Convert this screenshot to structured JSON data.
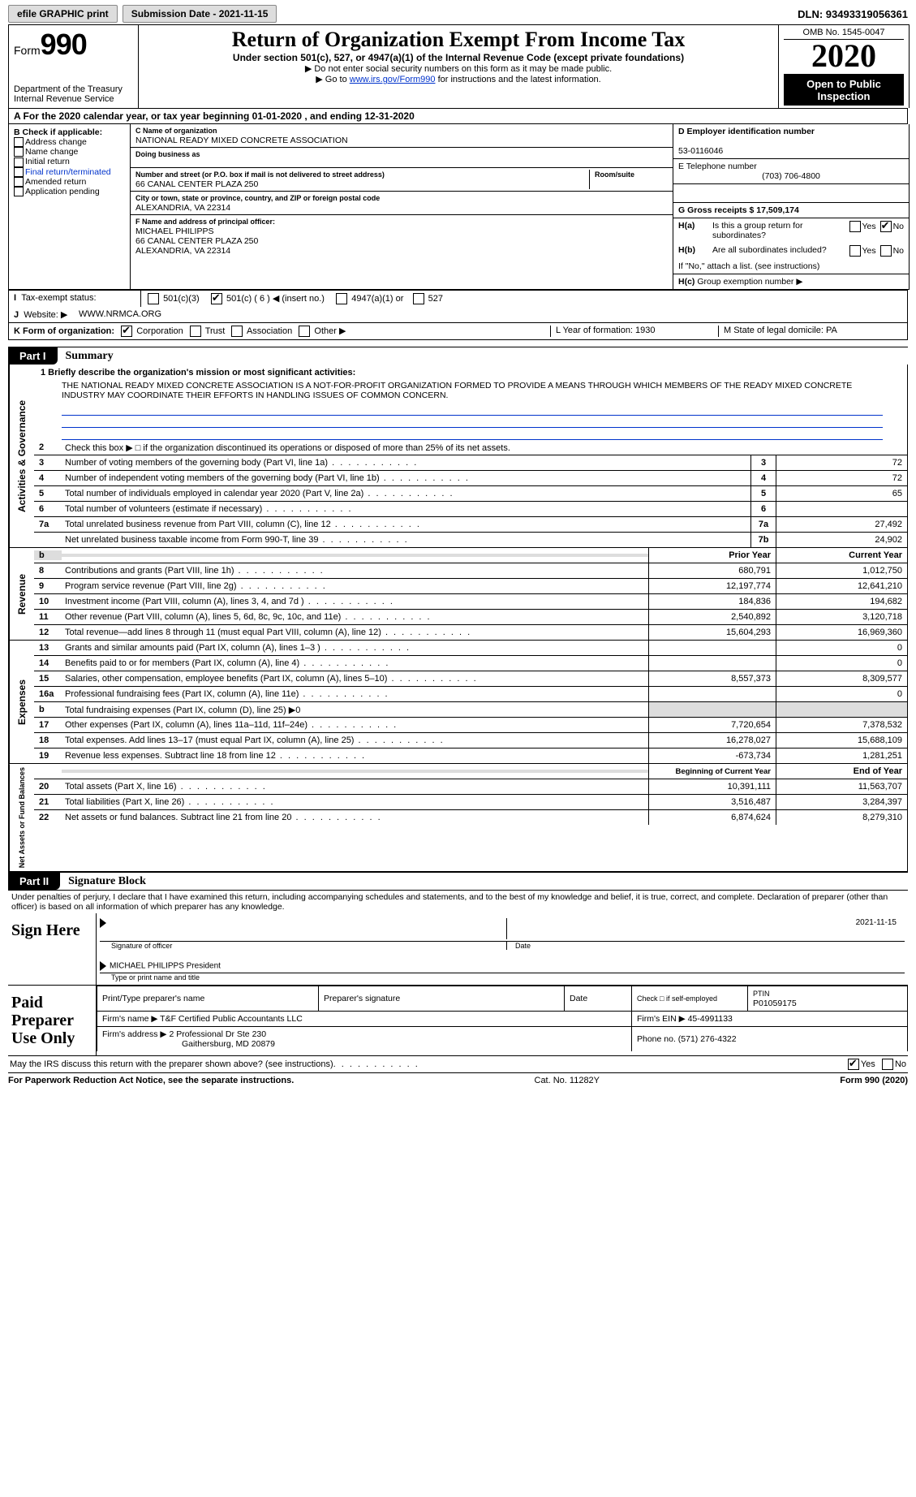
{
  "colors": {
    "bg": "#ffffff",
    "black": "#000000",
    "link": "#0033cc",
    "shade": "#dddddd"
  },
  "topbar": {
    "efile_label": "efile GRAPHIC print",
    "submission_label": "Submission Date - 2021-11-15",
    "dln_label": "DLN: 93493319056361"
  },
  "header": {
    "form_prefix": "Form",
    "form_number": "990",
    "dept": "Department of the Treasury\nInternal Revenue Service",
    "title": "Return of Organization Exempt From Income Tax",
    "subtitle": "Under section 501(c), 527, or 4947(a)(1) of the Internal Revenue Code (except private foundations)",
    "note1": "▶ Do not enter social security numbers on this form as it may be made public.",
    "note2_prefix": "▶ Go to ",
    "note2_link": "www.irs.gov/Form990",
    "note2_suffix": " for instructions and the latest information.",
    "omb": "OMB No. 1545-0047",
    "year": "2020",
    "open_public": "Open to Public Inspection"
  },
  "rowA": "A  For the 2020 calendar year, or tax year beginning 01-01-2020    , and ending 12-31-2020",
  "colB": {
    "header": "B Check if applicable:",
    "items": [
      "Address change",
      "Name change",
      "Initial return",
      "Final return/terminated",
      "Amended return",
      "Application pending"
    ]
  },
  "colC": {
    "name_label": "C Name of organization",
    "org_name": "NATIONAL READY MIXED CONCRETE ASSOCIATION",
    "dba_label": "Doing business as",
    "street_label": "Number and street (or P.O. box if mail is not delivered to street address)",
    "street": "66 CANAL CENTER PLAZA 250",
    "room_label": "Room/suite",
    "city_label": "City or town, state or province, country, and ZIP or foreign postal code",
    "city": "ALEXANDRIA, VA  22314",
    "officer_label": "F Name and address of principal officer:",
    "officer_name": "MICHAEL PHILIPPS",
    "officer_addr1": "66 CANAL CENTER PLAZA 250",
    "officer_addr2": "ALEXANDRIA, VA  22314"
  },
  "colD": {
    "ein_label": "D Employer identification number",
    "ein": "53-0116046",
    "phone_label": "E Telephone number",
    "phone": "(703) 706-4800",
    "gross_label": "G Gross receipts $ 17,509,174"
  },
  "H": {
    "a_q": "Is this a group return for subordinates?",
    "b_q": "Are all subordinates included?",
    "b_note": "If \"No,\" attach a list. (see instructions)",
    "c_label": "Group exemption number ▶",
    "yes": "Yes",
    "no": "No",
    "Ha_label": "H(a)",
    "Hb_label": "H(b)",
    "Hc_label": "H(c)"
  },
  "I_label": "Tax-exempt status:",
  "I_opts": {
    "o1": "501(c)(3)",
    "o2": "501(c) ( 6 ) ◀ (insert no.)",
    "o3": "4947(a)(1) or",
    "o4": "527"
  },
  "J_label": "Website: ▶",
  "J_value": " WWW.NRMCA.ORG",
  "K_label": "K Form of organization:",
  "K_opts": [
    "Corporation",
    "Trust",
    "Association",
    "Other ▶"
  ],
  "L_label": "L Year of formation: 1930",
  "M_label": "M State of legal domicile: PA",
  "partI_tab": "Part I",
  "partI_title": "Summary",
  "mission_label": "1  Briefly describe the organization's mission or most significant activities:",
  "mission": "THE NATIONAL READY MIXED CONCRETE ASSOCIATION IS A NOT-FOR-PROFIT ORGANIZATION FORMED TO PROVIDE A MEANS THROUGH WHICH MEMBERS OF THE READY MIXED CONCRETE INDUSTRY MAY COORDINATE THEIR EFFORTS IN HANDLING ISSUES OF COMMON CONCERN.",
  "section_labels": {
    "ag": "Activities & Governance",
    "rev": "Revenue",
    "exp": "Expenses",
    "nafb": "Net Assets or Fund Balances"
  },
  "line2": "Check this box ▶ □ if the organization discontinued its operations or disposed of more than 25% of its net assets.",
  "ag_rows": [
    {
      "n": "3",
      "d": "Number of voting members of the governing body (Part VI, line 1a)",
      "box": "3",
      "v": "72"
    },
    {
      "n": "4",
      "d": "Number of independent voting members of the governing body (Part VI, line 1b)",
      "box": "4",
      "v": "72"
    },
    {
      "n": "5",
      "d": "Total number of individuals employed in calendar year 2020 (Part V, line 2a)",
      "box": "5",
      "v": "65"
    },
    {
      "n": "6",
      "d": "Total number of volunteers (estimate if necessary)",
      "box": "6",
      "v": ""
    },
    {
      "n": "7a",
      "d": "Total unrelated business revenue from Part VIII, column (C), line 12",
      "box": "7a",
      "v": "27,492"
    },
    {
      "n": "",
      "d": "Net unrelated business taxable income from Form 990-T, line 39",
      "box": "7b",
      "v": "24,902"
    }
  ],
  "col_hdr_prior": "Prior Year",
  "col_hdr_curr": "Current Year",
  "rev_rows": [
    {
      "n": "8",
      "d": "Contributions and grants (Part VIII, line 1h)",
      "p": "680,791",
      "c": "1,012,750"
    },
    {
      "n": "9",
      "d": "Program service revenue (Part VIII, line 2g)",
      "p": "12,197,774",
      "c": "12,641,210"
    },
    {
      "n": "10",
      "d": "Investment income (Part VIII, column (A), lines 3, 4, and 7d )",
      "p": "184,836",
      "c": "194,682"
    },
    {
      "n": "11",
      "d": "Other revenue (Part VIII, column (A), lines 5, 6d, 8c, 9c, 10c, and 11e)",
      "p": "2,540,892",
      "c": "3,120,718"
    },
    {
      "n": "12",
      "d": "Total revenue—add lines 8 through 11 (must equal Part VIII, column (A), line 12)",
      "p": "15,604,293",
      "c": "16,969,360"
    }
  ],
  "exp_rows": [
    {
      "n": "13",
      "d": "Grants and similar amounts paid (Part IX, column (A), lines 1–3 )",
      "p": "",
      "c": "0"
    },
    {
      "n": "14",
      "d": "Benefits paid to or for members (Part IX, column (A), line 4)",
      "p": "",
      "c": "0"
    },
    {
      "n": "15",
      "d": "Salaries, other compensation, employee benefits (Part IX, column (A), lines 5–10)",
      "p": "8,557,373",
      "c": "8,309,577"
    },
    {
      "n": "16a",
      "d": "Professional fundraising fees (Part IX, column (A), line 11e)",
      "p": "",
      "c": "0"
    },
    {
      "n": "b",
      "d": "Total fundraising expenses (Part IX, column (D), line 25) ▶0",
      "p": "—shade—",
      "c": "—shade—"
    },
    {
      "n": "17",
      "d": "Other expenses (Part IX, column (A), lines 11a–11d, 11f–24e)",
      "p": "7,720,654",
      "c": "7,378,532"
    },
    {
      "n": "18",
      "d": "Total expenses. Add lines 13–17 (must equal Part IX, column (A), line 25)",
      "p": "16,278,027",
      "c": "15,688,109"
    },
    {
      "n": "19",
      "d": "Revenue less expenses. Subtract line 18 from line 12",
      "p": "-673,734",
      "c": "1,281,251"
    }
  ],
  "nafb_hdr_begin": "Beginning of Current Year",
  "nafb_hdr_end": "End of Year",
  "nafb_rows": [
    {
      "n": "20",
      "d": "Total assets (Part X, line 16)",
      "p": "10,391,111",
      "c": "11,563,707"
    },
    {
      "n": "21",
      "d": "Total liabilities (Part X, line 26)",
      "p": "3,516,487",
      "c": "3,284,397"
    },
    {
      "n": "22",
      "d": "Net assets or fund balances. Subtract line 21 from line 20",
      "p": "6,874,624",
      "c": "8,279,310"
    }
  ],
  "partII_tab": "Part II",
  "partII_title": "Signature Block",
  "penalties": "Under penalties of perjury, I declare that I have examined this return, including accompanying schedules and statements, and to the best of my knowledge and belief, it is true, correct, and complete. Declaration of preparer (other than officer) is based on all information of which preparer has any knowledge.",
  "sign_here": "Sign Here",
  "sig_officer_label": "Signature of officer",
  "sig_date_label": "Date",
  "sig_date": "2021-11-15",
  "sig_name": "MICHAEL PHILIPPS President",
  "sig_name_label": "Type or print name and title",
  "paid_label": "Paid Preparer Use Only",
  "paid": {
    "h1": "Print/Type preparer's name",
    "h2": "Preparer's signature",
    "h3": "Date",
    "h4": "Check □ if self-employed",
    "h5": "PTIN",
    "ptin": "P01059175",
    "firm_name_label": "Firm's name    ▶",
    "firm_name": "T&F Certified Public Accountants LLC",
    "firm_ein_label": "Firm's EIN ▶",
    "firm_ein": "45-4991133",
    "firm_addr_label": "Firm's address ▶",
    "firm_addr1": "2 Professional Dr Ste 230",
    "firm_addr2": "Gaithersburg, MD  20879",
    "phone_label": "Phone no. (571) 276-4322"
  },
  "discuss": "May the IRS discuss this return with the preparer shown above? (see instructions)",
  "footer": {
    "left": "For Paperwork Reduction Act Notice, see the separate instructions.",
    "mid": "Cat. No. 11282Y",
    "right_prefix": "Form ",
    "right_form": "990",
    "right_suffix": " (2020)"
  }
}
